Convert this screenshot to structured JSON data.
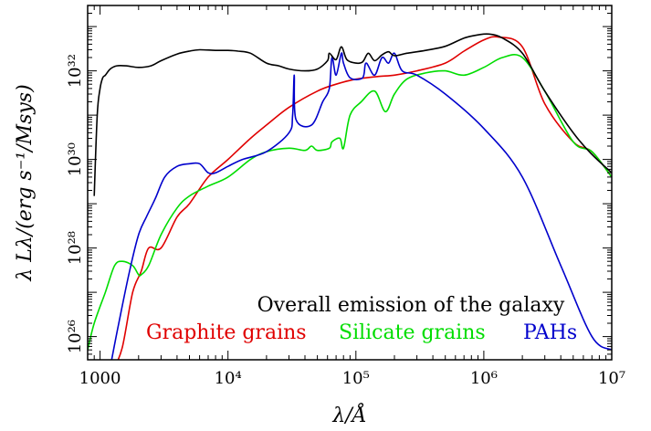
{
  "chart_data": {
    "type": "line",
    "title": "",
    "xlabel": "λ/Å",
    "ylabel": "λ Lλ/(erg s⁻¹/Msys)",
    "xscale": "log",
    "yscale": "log",
    "xlim": [
      800,
      10000000
    ],
    "ylim": [
      3e+25,
      3e+33
    ],
    "grid": false,
    "x_ticks": [
      {
        "value": 1000,
        "label": "1000"
      },
      {
        "value": 10000,
        "label": "10⁴"
      },
      {
        "value": 100000,
        "label": "10⁵"
      },
      {
        "value": 1000000,
        "label": "10⁶"
      },
      {
        "value": 10000000,
        "label": "10⁷"
      }
    ],
    "y_ticks": [
      {
        "value": 1e+26,
        "label": "10²⁶"
      },
      {
        "value": 1e+28,
        "label": "10²⁸"
      },
      {
        "value": 1e+30,
        "label": "10³⁰"
      },
      {
        "value": 1e+32,
        "label": "10³²"
      }
    ],
    "legend": {
      "placement": "bottom-right",
      "header": "Overall emission of the galaxy",
      "header_color": "#000000"
    },
    "series": [
      {
        "name": "Overall emission of the galaxy",
        "color": "#000000",
        "x": [
          900,
          950,
          1000,
          1050,
          1100,
          1200,
          1350,
          1600,
          2000,
          2500,
          3000,
          4000,
          5000,
          6000,
          8000,
          10000,
          12000,
          15000,
          20000,
          25000,
          30000,
          40000,
          50000,
          60000,
          62000,
          70000,
          77000,
          85000,
          100000,
          113000,
          125000,
          140000,
          160000,
          180000,
          200000,
          250000,
          350000,
          500000,
          700000,
          900000,
          1100000,
          1400000,
          2000000,
          3000000,
          5000000,
          7000000,
          10000000
        ],
        "y": [
          1.5e+29,
          1e+31,
          4e+31,
          7e+31,
          8e+31,
          1.1e+32,
          1.3e+32,
          1.3e+32,
          1.2e+32,
          1.3e+32,
          1.7e+32,
          2.4e+32,
          2.8e+32,
          3e+32,
          2.9e+32,
          2.9e+32,
          2.8e+32,
          2.5e+32,
          1.5e+32,
          1.3e+32,
          1.1e+32,
          1e+32,
          1.1e+32,
          1.7e+32,
          2.5e+32,
          1.8e+32,
          3.5e+32,
          1.8e+32,
          1.5e+32,
          1.6e+32,
          2.5e+32,
          1.7e+32,
          2.3e+32,
          2.7e+32,
          2.2e+32,
          2.5e+32,
          2.9e+32,
          3.6e+32,
          5.5e+32,
          6.5e+32,
          6.8e+32,
          5.5e+32,
          2.5e+32,
          3.5e+31,
          4e+30,
          1.3e+30,
          5e+29
        ]
      },
      {
        "name": "Graphite grains",
        "color": "#e00000",
        "x": [
          1300,
          1500,
          1800,
          2100,
          2400,
          3000,
          4000,
          5000,
          7000,
          10000,
          15000,
          20000,
          30000,
          50000,
          70000,
          100000,
          150000,
          200000,
          300000,
          500000,
          700000,
          1000000,
          1300000,
          2000000,
          3000000,
          5000000,
          7000000,
          10000000
        ],
        "y": [
          2e+25,
          6e+25,
          1e+27,
          3e+27,
          1e+28,
          1e+28,
          5e+28,
          1e+29,
          4e+29,
          1e+30,
          3e+30,
          6e+30,
          1.5e+31,
          3.5e+31,
          5e+31,
          6.5e+31,
          7.5e+31,
          8e+31,
          1e+32,
          1.5e+32,
          2.8e+32,
          5e+32,
          5.8e+32,
          3.5e+32,
          1.8e+31,
          2.5e+30,
          1.5e+30,
          4e+29
        ]
      },
      {
        "name": "Silicate grains",
        "color": "#00dd00",
        "x": [
          800,
          900,
          1100,
          1300,
          1500,
          1800,
          2000,
          2100,
          2400,
          3000,
          4000,
          5000,
          7000,
          10000,
          15000,
          20000,
          30000,
          40000,
          45000,
          50000,
          62000,
          65000,
          75000,
          80000,
          90000,
          110000,
          140000,
          170000,
          200000,
          250000,
          350000,
          500000,
          700000,
          1000000,
          1400000,
          2000000,
          3000000,
          5000000,
          7000000,
          10000000
        ],
        "y": [
          5e+25,
          2e+26,
          1e+27,
          4e+27,
          5e+27,
          4e+27,
          2.5e+27,
          2.5e+27,
          4e+27,
          2e+28,
          8e+28,
          1.5e+29,
          2.5e+29,
          4e+29,
          1e+30,
          1.5e+30,
          1.8e+30,
          1.6e+30,
          2e+30,
          1.6e+30,
          1.8e+30,
          2.5e+30,
          3e+30,
          1.8e+30,
          1e+31,
          2e+31,
          3.5e+31,
          1.2e+31,
          3e+31,
          6.5e+31,
          9e+31,
          1e+32,
          8e+31,
          1.2e+32,
          2e+32,
          2e+32,
          3.5e+31,
          2.5e+30,
          1.5e+30,
          4e+29
        ]
      },
      {
        "name": "PAHs",
        "color": "#0000cc",
        "x": [
          1200,
          1400,
          1700,
          2000,
          2300,
          2700,
          3200,
          4000,
          5000,
          6000,
          7000,
          8000,
          10000,
          13000,
          20000,
          30000,
          32000,
          33000,
          34000,
          45000,
          55000,
          62000,
          65000,
          70000,
          77000,
          80000,
          90000,
          113000,
          120000,
          140000,
          160000,
          180000,
          200000,
          230000,
          300000,
          500000,
          1000000,
          2000000,
          4000000,
          7000000,
          10000000
        ],
        "y": [
          2e+25,
          2e+26,
          3e+27,
          2e+28,
          5e+28,
          1.3e+29,
          4e+29,
          7e+29,
          8e+29,
          8e+29,
          5e+29,
          5e+29,
          7e+29,
          1e+30,
          1.5e+30,
          4e+30,
          1e+31,
          8e+31,
          8e+30,
          6e+30,
          2e+31,
          4e+31,
          2e+32,
          8e+31,
          2.5e+32,
          1.5e+32,
          7e+31,
          7e+31,
          1.5e+32,
          8e+31,
          2e+32,
          1.5e+32,
          2.5e+32,
          1e+32,
          8e+31,
          3e+31,
          5e+30,
          4e+29,
          4e+27,
          1e+26,
          5e+25
        ]
      }
    ]
  }
}
